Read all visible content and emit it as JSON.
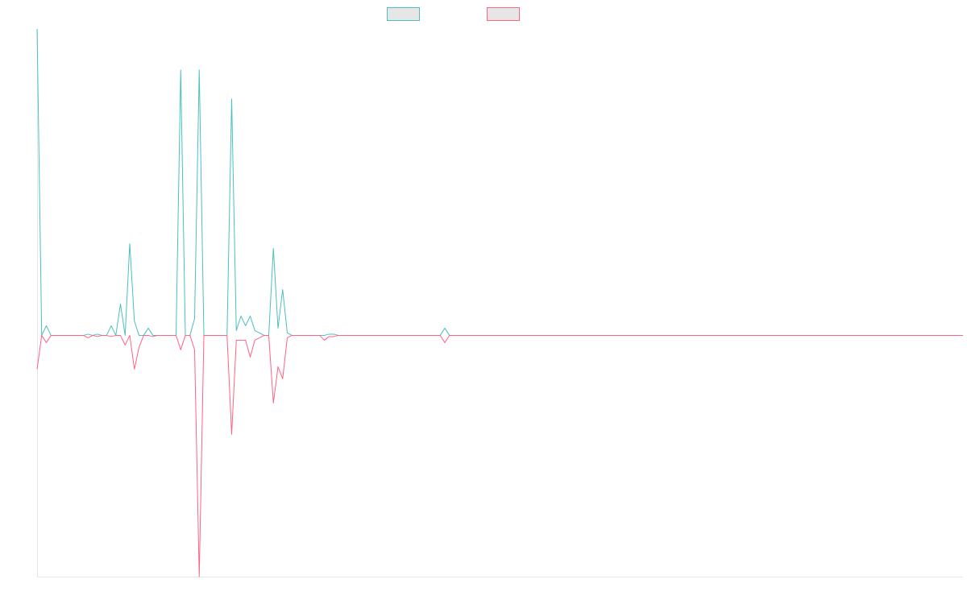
{
  "chart_data": {
    "type": "line",
    "title": "",
    "xlabel": "",
    "ylabel": "",
    "ylim": [
      -1,
      1.27
    ],
    "grid": false,
    "legend_position": "top",
    "series": [
      {
        "color": "#4bc0c0",
        "values": [
          1.27,
          0,
          0.04,
          0,
          0,
          0,
          0,
          0,
          0,
          0,
          0,
          0.005,
          0,
          0.005,
          0,
          0,
          0.04,
          0,
          0.13,
          0,
          0.38,
          0.06,
          0,
          0,
          0.03,
          0,
          0,
          0,
          0,
          0,
          0,
          1.1,
          0,
          0,
          0.07,
          1.1,
          0,
          0,
          0,
          0,
          0,
          0,
          0.98,
          0.02,
          0.08,
          0.04,
          0.08,
          0.02,
          0.01,
          0,
          0,
          0.36,
          0.03,
          0.19,
          0.01,
          0,
          0,
          0,
          0,
          0,
          0,
          0,
          0,
          0.005,
          0.005,
          0,
          0,
          0,
          0,
          0,
          0,
          0,
          0,
          0,
          0,
          0,
          0,
          0,
          0,
          0,
          0,
          0,
          0,
          0,
          0,
          0,
          0,
          0,
          0.03,
          0
        ]
      },
      {
        "color": "#ff6384",
        "values": [
          -0.14,
          0,
          -0.03,
          0,
          0,
          0,
          0,
          0,
          0,
          0,
          0,
          -0.01,
          0,
          -0.005,
          0,
          0,
          -0.005,
          0,
          0,
          -0.04,
          0,
          -0.14,
          -0.05,
          0,
          0,
          -0.005,
          0,
          0,
          0,
          0,
          0,
          -0.06,
          0,
          0,
          -0.06,
          -1.0,
          0,
          0,
          0,
          0,
          0,
          0,
          -0.41,
          -0.02,
          -0.02,
          -0.02,
          -0.09,
          -0.02,
          -0.01,
          0,
          0,
          -0.28,
          -0.13,
          -0.18,
          -0.01,
          0,
          0,
          0,
          0,
          0,
          0,
          0,
          -0.02,
          -0.005,
          -0.005,
          0,
          0,
          0,
          0,
          0,
          0,
          0,
          0,
          0,
          0,
          0,
          0,
          0,
          0,
          0,
          0,
          0,
          0,
          0,
          0,
          0,
          0,
          0,
          -0.03,
          0
        ]
      }
    ]
  }
}
